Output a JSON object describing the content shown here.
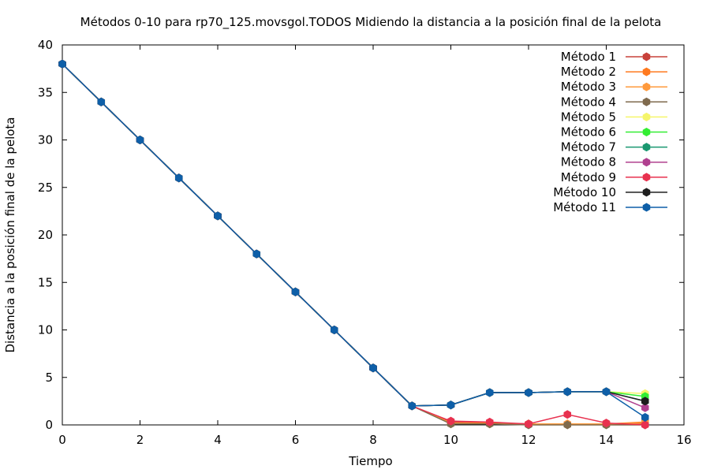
{
  "chart_data": {
    "type": "line",
    "title": "Métodos 0-10 para rp70_125.movsgol.TODOS Midiendo la distancia a la posición final de la pelota",
    "xlabel": "Tiempo",
    "ylabel": "Distancia a la posición final de la pelota",
    "xlim": [
      0,
      16
    ],
    "ylim": [
      0,
      40
    ],
    "xticks": [
      "0",
      "2",
      "4",
      "6",
      "8",
      "10",
      "12",
      "14",
      "16"
    ],
    "yticks": [
      "0",
      "5",
      "10",
      "15",
      "20",
      "25",
      "30",
      "35",
      "40"
    ],
    "grid": false,
    "legend_position": "top-right",
    "series": [
      {
        "name": "Método 1",
        "color": "#c8413a",
        "x": [
          0,
          1,
          2,
          3,
          4,
          5,
          6,
          7,
          8,
          9,
          10,
          11,
          12,
          13,
          14,
          15
        ],
        "y": [
          38,
          34,
          30,
          26,
          22,
          18,
          14,
          10,
          6,
          2,
          0.3,
          0.2,
          0.1,
          0.1,
          0.1,
          0.1
        ]
      },
      {
        "name": "Método 2",
        "color": "#ff7a1f",
        "x": [
          0,
          1,
          2,
          3,
          4,
          5,
          6,
          7,
          8,
          9,
          10,
          11,
          12,
          13,
          14,
          15
        ],
        "y": [
          38,
          34,
          30,
          26,
          22,
          18,
          14,
          10,
          6,
          2,
          0.2,
          0.2,
          0.1,
          0.1,
          0.1,
          0.3
        ]
      },
      {
        "name": "Método 3",
        "color": "#ff9a3c",
        "x": [
          0,
          1,
          2,
          3,
          4,
          5,
          6,
          7,
          8,
          9,
          10,
          11,
          12,
          13,
          14,
          15
        ],
        "y": [
          38,
          34,
          30,
          26,
          22,
          18,
          14,
          10,
          6,
          2,
          0.2,
          0.1,
          0.1,
          0.1,
          0.1,
          0.2
        ]
      },
      {
        "name": "Método 4",
        "color": "#7f6a4d",
        "x": [
          0,
          1,
          2,
          3,
          4,
          5,
          6,
          7,
          8,
          9,
          10,
          11,
          12,
          13,
          14,
          15
        ],
        "y": [
          38,
          34,
          30,
          26,
          22,
          18,
          14,
          10,
          6,
          2,
          0.1,
          0.1,
          0.0,
          0.0,
          0.0,
          0.0
        ]
      },
      {
        "name": "Método 5",
        "color": "#f5f56a",
        "x": [
          0,
          1,
          2,
          3,
          4,
          5,
          6,
          7,
          8,
          9,
          10,
          11,
          12,
          13,
          14,
          15
        ],
        "y": [
          38,
          34,
          30,
          26,
          22,
          18,
          14,
          10,
          6,
          2,
          2.1,
          3.4,
          3.4,
          3.5,
          3.5,
          3.3
        ]
      },
      {
        "name": "Método 6",
        "color": "#33ee33",
        "x": [
          0,
          1,
          2,
          3,
          4,
          5,
          6,
          7,
          8,
          9,
          10,
          11,
          12,
          13,
          14,
          15
        ],
        "y": [
          38,
          34,
          30,
          26,
          22,
          18,
          14,
          10,
          6,
          2,
          2.1,
          3.4,
          3.4,
          3.5,
          3.5,
          3.0
        ]
      },
      {
        "name": "Método 7",
        "color": "#1a9870",
        "x": [
          0,
          1,
          2,
          3,
          4,
          5,
          6,
          7,
          8,
          9,
          10,
          11,
          12,
          13,
          14,
          15
        ],
        "y": [
          38,
          34,
          30,
          26,
          22,
          18,
          14,
          10,
          6,
          2,
          2.1,
          3.4,
          3.4,
          3.5,
          3.5,
          2.5
        ]
      },
      {
        "name": "Método 8",
        "color": "#b0408f",
        "x": [
          0,
          1,
          2,
          3,
          4,
          5,
          6,
          7,
          8,
          9,
          10,
          11,
          12,
          13,
          14,
          15
        ],
        "y": [
          38,
          34,
          30,
          26,
          22,
          18,
          14,
          10,
          6,
          2,
          2.1,
          3.4,
          3.4,
          3.5,
          3.5,
          1.8
        ]
      },
      {
        "name": "Método 9",
        "color": "#e8314f",
        "x": [
          0,
          1,
          2,
          3,
          4,
          5,
          6,
          7,
          8,
          9,
          10,
          11,
          12,
          13,
          14,
          15
        ],
        "y": [
          38,
          34,
          30,
          26,
          22,
          18,
          14,
          10,
          6,
          2,
          0.4,
          0.3,
          0.1,
          1.1,
          0.2,
          0.0
        ]
      },
      {
        "name": "Método 10",
        "color": "#1e1e1e",
        "x": [
          0,
          1,
          2,
          3,
          4,
          5,
          6,
          7,
          8,
          9,
          10,
          11,
          12,
          13,
          14,
          15
        ],
        "y": [
          38,
          34,
          30,
          26,
          22,
          18,
          14,
          10,
          6,
          2,
          2.1,
          3.4,
          3.4,
          3.5,
          3.5,
          2.5
        ]
      },
      {
        "name": "Método 11",
        "color": "#0e5fa8",
        "x": [
          0,
          1,
          2,
          3,
          4,
          5,
          6,
          7,
          8,
          9,
          10,
          11,
          12,
          13,
          14,
          15
        ],
        "y": [
          38,
          34,
          30,
          26,
          22,
          18,
          14,
          10,
          6,
          2,
          2.1,
          3.4,
          3.4,
          3.5,
          3.5,
          0.8
        ]
      }
    ]
  }
}
